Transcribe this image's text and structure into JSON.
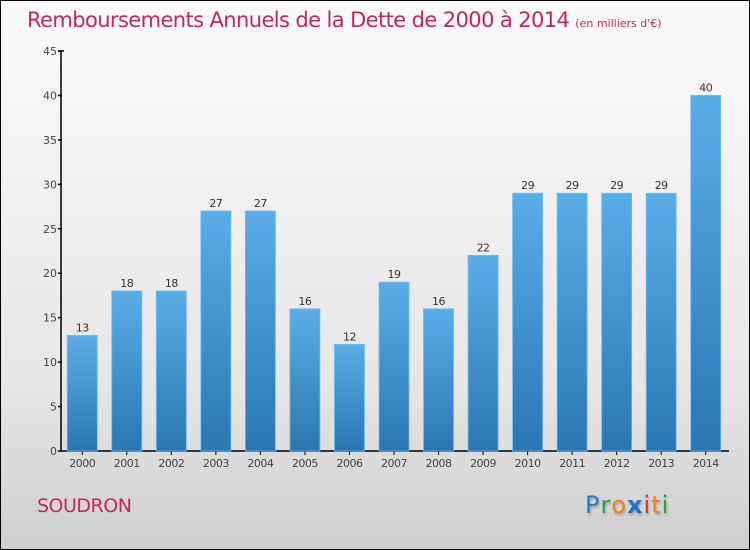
{
  "header": {
    "title": "Remboursements Annuels de la Dette de 2000 à 2014",
    "unit": "(en milliers d'€)"
  },
  "footer": {
    "commune": "SOUDRON",
    "logo": {
      "letters": [
        {
          "char": "P",
          "color": "#2a7cc7"
        },
        {
          "char": "r",
          "color": "#2aa14b"
        },
        {
          "char": "o",
          "color": "#f0821e"
        },
        {
          "char": "x",
          "color": "#1f74c9"
        },
        {
          "char": "i",
          "color": "#e0332a"
        },
        {
          "char": "t",
          "color": "#f0821e"
        },
        {
          "char": "i",
          "color": "#2aa14b"
        }
      ]
    }
  },
  "colors": {
    "title": "#c0285a",
    "bar_top": "#5aaee8",
    "bar_bottom": "#2a76b3",
    "axis": "#000000",
    "tick_label": "#444444"
  },
  "chart_data": {
    "type": "bar",
    "title": "Remboursements Annuels de la Dette de 2000 à 2014",
    "subtitle": "(en milliers d'€)",
    "xlabel": "",
    "ylabel": "",
    "categories": [
      "2000",
      "2001",
      "2002",
      "2003",
      "2004",
      "2005",
      "2006",
      "2007",
      "2008",
      "2009",
      "2010",
      "2011",
      "2012",
      "2013",
      "2014"
    ],
    "values": [
      13,
      18,
      18,
      27,
      27,
      16,
      12,
      19,
      16,
      22,
      29,
      29,
      29,
      29,
      40
    ],
    "data_labels": [
      "13",
      "18",
      "18",
      "27",
      "27",
      "16",
      "12",
      "19",
      "16",
      "22",
      "29",
      "29",
      "29",
      "29",
      "40"
    ],
    "ylim": [
      0,
      45
    ],
    "yticks": [
      0,
      5,
      10,
      15,
      20,
      25,
      30,
      35,
      40,
      45
    ],
    "grid": false,
    "legend": "none"
  }
}
